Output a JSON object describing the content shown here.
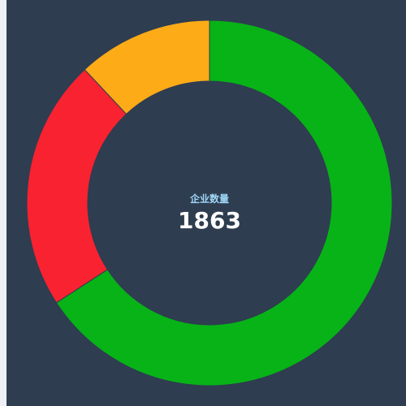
{
  "chart_data": {
    "type": "donut",
    "center_label": "企业数量",
    "center_value": 1863,
    "categories": [
      null,
      null,
      null
    ],
    "values": [
      1226,
      414,
      223
    ],
    "colors": [
      "#07b317",
      "#f92230",
      "#fdab17"
    ]
  }
}
